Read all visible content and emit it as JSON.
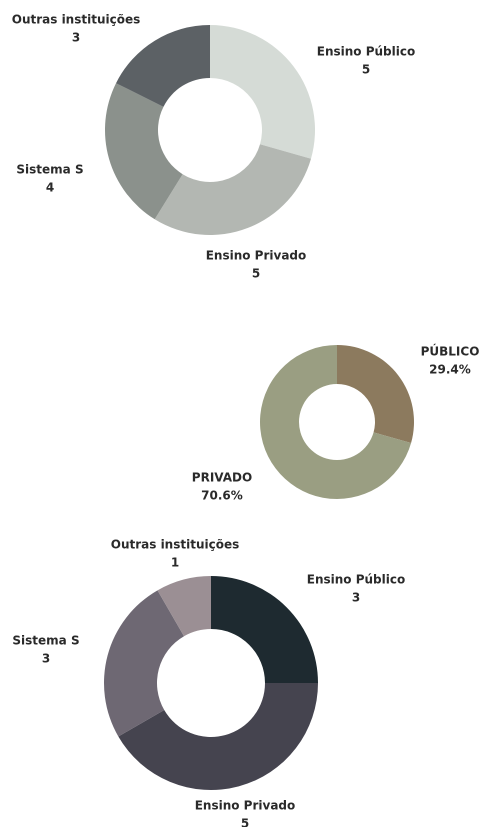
{
  "chart_data": [
    {
      "type": "donut",
      "categories": [
        "Ensino Público",
        "Ensino Privado",
        "Sistema S",
        "Outras instituições"
      ],
      "values": [
        5,
        5,
        4,
        3
      ],
      "colors": [
        "#d5dbd6",
        "#b3b7b2",
        "#8b918c",
        "#5c6165"
      ]
    },
    {
      "type": "donut",
      "categories": [
        "PÚBLICO",
        "PRIVADO"
      ],
      "values": [
        29.4,
        70.6
      ],
      "value_labels": [
        "29.4%",
        "70.6%"
      ],
      "colors": [
        "#8c7a5e",
        "#9a9e82"
      ]
    },
    {
      "type": "donut",
      "categories": [
        "Ensino Público",
        "Ensino Privado",
        "Sistema S",
        "Outras instituições"
      ],
      "values": [
        3,
        5,
        3,
        1
      ],
      "colors": [
        "#1e2a30",
        "#45444f",
        "#6e6873",
        "#9b8f94"
      ]
    }
  ]
}
